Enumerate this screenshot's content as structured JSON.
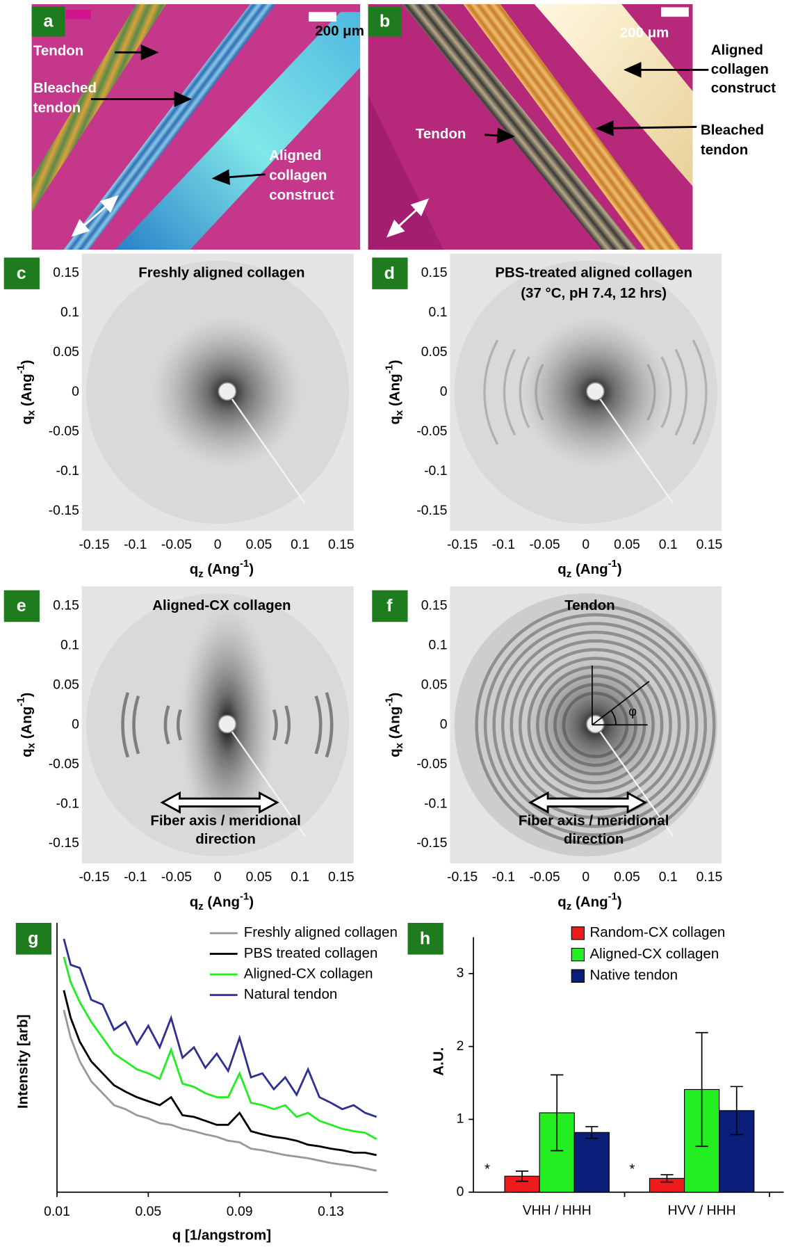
{
  "photos": [
    {
      "panel": "a",
      "scale_bar": "200 μm",
      "labels": [
        [
          "Tendon"
        ],
        [
          "Bleached",
          "tendon"
        ],
        [
          "Aligned",
          "collagen",
          "construct"
        ]
      ]
    },
    {
      "panel": "b",
      "scale_bar": "200 μm",
      "labels": [
        [
          "Aligned",
          "collagen",
          "construct"
        ],
        [
          "Bleached",
          "tendon"
        ],
        [
          "Tendon"
        ]
      ]
    }
  ],
  "chart_data": [
    {
      "type": "image",
      "panel": "c",
      "title": [
        "Freshly aligned collagen"
      ],
      "xlabel": [
        "q",
        "z",
        "(Ang",
        "-1",
        ")"
      ],
      "ylabel": [
        "q",
        "x",
        "(Ang",
        "-1",
        ")"
      ],
      "xlim": [
        -0.165,
        0.165
      ],
      "ylim": [
        -0.175,
        0.175
      ],
      "xticks": [
        -0.15,
        -0.1,
        -0.05,
        0,
        0.05,
        0.1,
        0.15
      ],
      "yticks": [
        -0.15,
        -0.1,
        -0.05,
        0,
        0.05,
        0.1,
        0.15
      ]
    },
    {
      "type": "image",
      "panel": "d",
      "title": [
        "PBS-treated aligned collagen",
        "(37 °C, pH 7.4, 12 hrs)"
      ],
      "xlabel": [
        "q",
        "z",
        "(Ang",
        "-1",
        ")"
      ],
      "ylabel": [
        "q",
        "x",
        "(Ang",
        "-1",
        ")"
      ],
      "xlim": [
        -0.165,
        0.165
      ],
      "ylim": [
        -0.175,
        0.175
      ],
      "xticks": [
        -0.15,
        -0.1,
        -0.05,
        0,
        0.05,
        0.1,
        0.15
      ],
      "yticks": [
        -0.15,
        -0.1,
        -0.05,
        0,
        0.05,
        0.1,
        0.15
      ]
    },
    {
      "type": "image",
      "panel": "e",
      "title": [
        "Aligned-CX collagen"
      ],
      "xlabel": [
        "q",
        "z",
        "(Ang",
        "-1",
        ")"
      ],
      "ylabel": [
        "q",
        "x",
        "(Ang",
        "-1",
        ")"
      ],
      "xlim": [
        -0.165,
        0.165
      ],
      "ylim": [
        -0.175,
        0.175
      ],
      "xticks": [
        -0.15,
        -0.1,
        -0.05,
        0,
        0.05,
        0.1,
        0.15
      ],
      "yticks": [
        -0.15,
        -0.1,
        -0.05,
        0,
        0.05,
        0.1,
        0.15
      ],
      "annotation": [
        "Fiber axis / meridional",
        "direction"
      ]
    },
    {
      "type": "image",
      "panel": "f",
      "title": [
        "Tendon"
      ],
      "xlabel": [
        "q",
        "z",
        "(Ang",
        "-1",
        ")"
      ],
      "ylabel": [
        "q",
        "x",
        "(Ang",
        "-1",
        ")"
      ],
      "xlim": [
        -0.165,
        0.165
      ],
      "ylim": [
        -0.175,
        0.175
      ],
      "xticks": [
        -0.15,
        -0.1,
        -0.05,
        0,
        0.05,
        0.1,
        0.15
      ],
      "yticks": [
        -0.15,
        -0.1,
        -0.05,
        0,
        0.05,
        0.1,
        0.15
      ],
      "annotation": [
        "Fiber axis / meridional",
        "direction"
      ],
      "angle_label": "φ"
    },
    {
      "type": "line",
      "panel": "g",
      "xlabel": "q [1/angstrom]",
      "ylabel": "Intensity [arb]",
      "xlim": [
        0.01,
        0.155
      ],
      "ylim": [
        0,
        100
      ],
      "xticks": [
        0.01,
        0.05,
        0.09,
        0.13
      ],
      "x": [
        0.013,
        0.016,
        0.02,
        0.025,
        0.03,
        0.035,
        0.04,
        0.045,
        0.05,
        0.055,
        0.06,
        0.065,
        0.07,
        0.075,
        0.08,
        0.085,
        0.09,
        0.095,
        0.1,
        0.105,
        0.11,
        0.115,
        0.12,
        0.125,
        0.13,
        0.135,
        0.14,
        0.145,
        0.15
      ],
      "series": [
        {
          "name": "Freshly aligned collagen",
          "color": "#999999",
          "values": [
            68.7,
            58.2,
            49.3,
            41.8,
            37.3,
            32.8,
            31.3,
            29.0,
            27.8,
            26.0,
            25.4,
            23.9,
            23.0,
            21.8,
            20.9,
            19.4,
            18.8,
            16.4,
            15.8,
            14.9,
            14.0,
            13.4,
            12.8,
            11.9,
            11.0,
            10.4,
            9.9,
            9.0,
            8.1
          ]
        },
        {
          "name": "PBS treated collagen",
          "color": "#000000",
          "values": [
            76.1,
            65.7,
            56.7,
            49.3,
            44.8,
            40.3,
            37.9,
            35.8,
            34.3,
            32.8,
            35.8,
            29.0,
            28.4,
            26.9,
            25.4,
            25.4,
            29.9,
            23.0,
            21.8,
            20.9,
            20.3,
            19.4,
            17.9,
            17.3,
            16.4,
            15.8,
            14.9,
            14.9,
            14.0
          ]
        },
        {
          "name": "Aligned-CX collagen",
          "color": "#22ee22",
          "values": [
            88.7,
            79.1,
            71.6,
            64.2,
            58.2,
            52.2,
            49.3,
            46.3,
            44.8,
            42.7,
            53.7,
            40.9,
            39.7,
            37.3,
            35.8,
            35.8,
            44.8,
            33.7,
            32.8,
            31.3,
            32.8,
            28.4,
            29.9,
            26.9,
            25.4,
            23.9,
            23.0,
            22.4,
            20.0
          ]
        },
        {
          "name": "Natural tendon",
          "color": "#2e3192",
          "values": [
            95.5,
            85.7,
            84.5,
            72.5,
            70.7,
            61.2,
            64.2,
            55.8,
            62.7,
            54.6,
            65.7,
            50.7,
            54.6,
            46.9,
            52.2,
            45.7,
            58.2,
            43.3,
            44.8,
            38.8,
            43.3,
            36.7,
            46.3,
            35.8,
            33.7,
            31.3,
            32.8,
            29.9,
            28.4
          ]
        }
      ]
    },
    {
      "type": "bar",
      "panel": "h",
      "ylabel": "A.U.",
      "categories": [
        "VHH / HHH",
        "HVV / HHH"
      ],
      "ylim": [
        0,
        3.5
      ],
      "yticks": [
        0,
        1,
        2,
        3
      ],
      "annotations": [
        "*",
        "*"
      ],
      "series": [
        {
          "name": "Random-CX collagen",
          "color": "#ee1c1c",
          "values": [
            0.22,
            0.19
          ],
          "errors": [
            0.07,
            0.05
          ]
        },
        {
          "name": "Aligned-CX collagen",
          "color": "#22ee22",
          "values": [
            1.09,
            1.41
          ],
          "errors": [
            0.52,
            0.78
          ]
        },
        {
          "name": "Native tendon",
          "color": "#0b1f7a",
          "values": [
            0.82,
            1.12
          ],
          "errors": [
            0.08,
            0.33
          ]
        }
      ]
    }
  ]
}
